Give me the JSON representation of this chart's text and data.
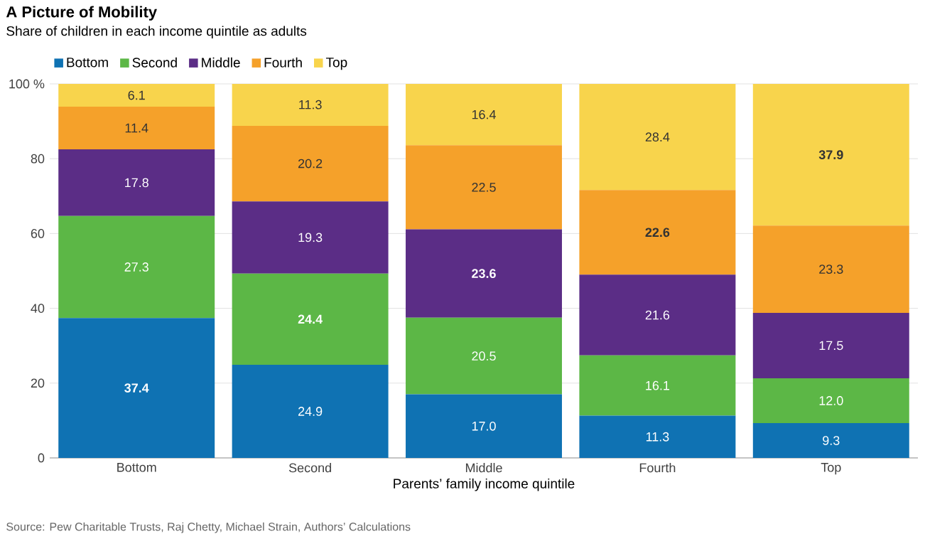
{
  "chart_data": {
    "type": "bar",
    "stacked": true,
    "title": "A Picture of Mobility",
    "subtitle": "Share of children in each income quintile as adults",
    "xlabel": "Parents’ family income quintile",
    "categories": [
      "Bottom",
      "Second",
      "Middle",
      "Fourth",
      "Top"
    ],
    "series": [
      {
        "name": "Bottom",
        "color": "#0f72b3",
        "values": [
          37.4,
          24.9,
          17.0,
          11.3,
          9.3
        ],
        "value_labels": [
          "**37.4**",
          "24.9",
          "17.0",
          "11.3",
          "9.3"
        ]
      },
      {
        "name": "Second",
        "color": "#5cb746",
        "values": [
          27.3,
          24.4,
          20.5,
          16.1,
          12.0
        ],
        "value_labels": [
          "27.3",
          "**24.4**",
          "20.5",
          "16.1",
          "12.0"
        ]
      },
      {
        "name": "Middle",
        "color": "#5b2d86",
        "values": [
          17.8,
          19.3,
          23.6,
          21.6,
          17.5
        ],
        "value_labels": [
          "17.8",
          "19.3",
          "**23.6**",
          "21.6",
          "17.5"
        ]
      },
      {
        "name": "Fourth",
        "color": "#f5a12a",
        "values": [
          11.4,
          20.2,
          22.5,
          22.6,
          23.3
        ],
        "value_labels": [
          "11.4",
          "20.2",
          "22.5",
          "**22.6**",
          "23.3"
        ]
      },
      {
        "name": "Top",
        "color": "#f8d44c",
        "values": [
          6.1,
          11.3,
          16.4,
          28.4,
          37.9
        ],
        "value_labels": [
          "6.1",
          "11.3",
          "16.4",
          "28.4",
          "**37.9**"
        ]
      }
    ],
    "ylim": [
      0,
      100
    ],
    "yticks": [
      0,
      20,
      40,
      60,
      80,
      {
        "value": 100,
        "label": "100 %"
      }
    ],
    "grid": "y",
    "legend": "top left",
    "annotations": [
      "Source: Pew Charitable Trusts, Raj Chetty, Michael Strain, Authors’ Calculations"
    ]
  }
}
